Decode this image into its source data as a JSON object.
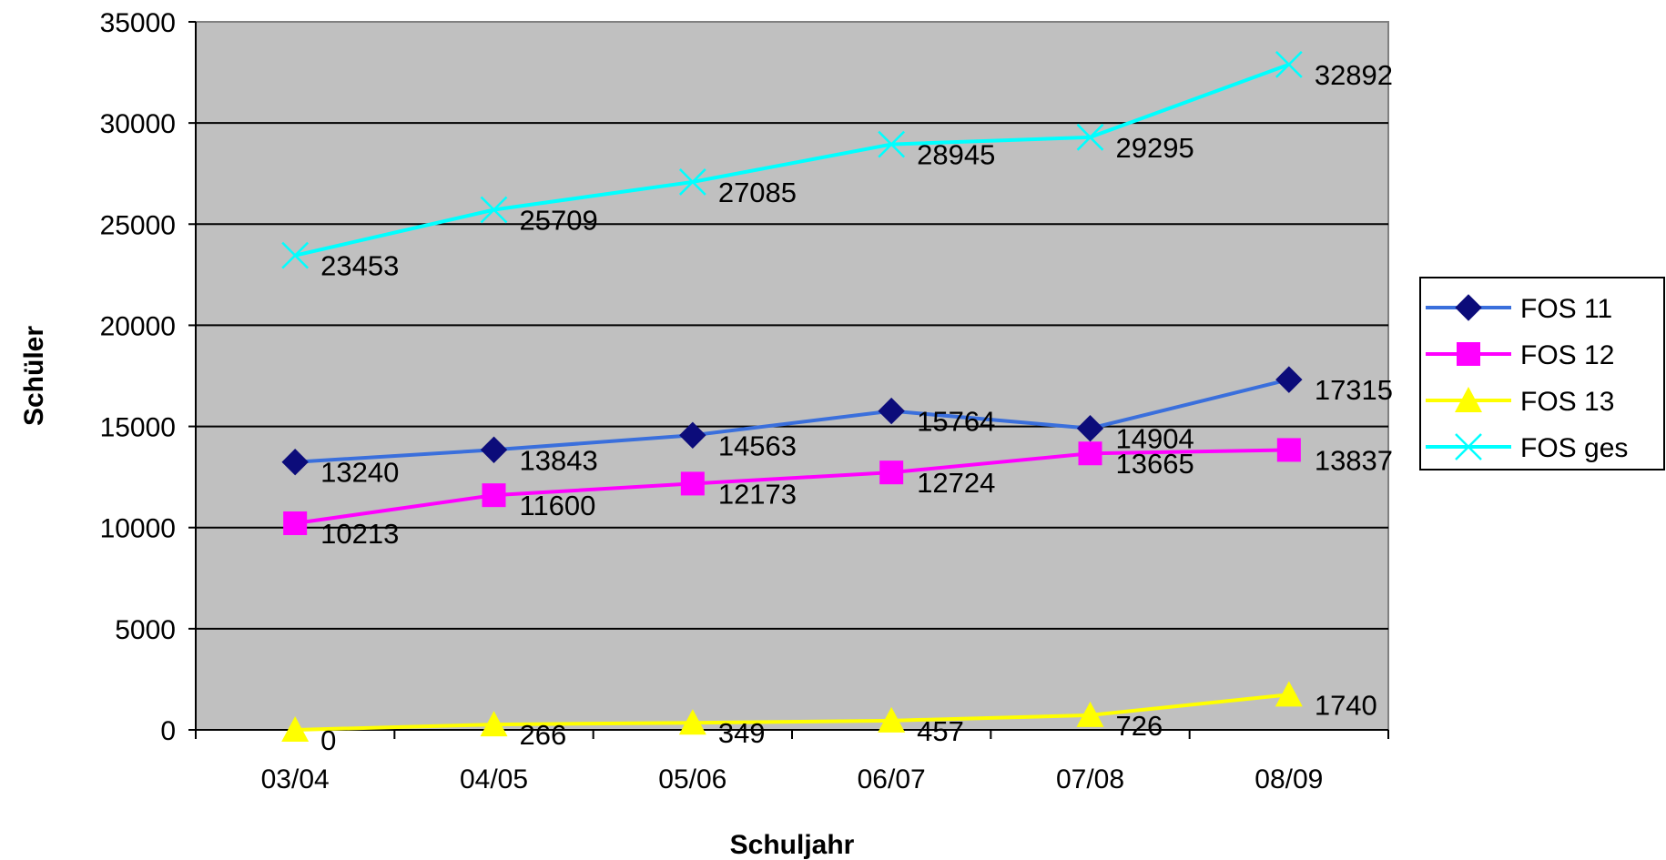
{
  "chart_data": {
    "type": "line",
    "title": "",
    "xlabel": "Schuljahr",
    "ylabel": "Schüler",
    "categories": [
      "03/04",
      "04/05",
      "05/06",
      "06/07",
      "07/08",
      "08/09"
    ],
    "ylim": [
      0,
      35000
    ],
    "yticks": [
      0,
      5000,
      10000,
      15000,
      20000,
      25000,
      30000,
      35000
    ],
    "grid": true,
    "legend_position": "right",
    "plot_background": "#c0c0c0",
    "series": [
      {
        "name": "FOS 11",
        "values": [
          13240,
          13843,
          14563,
          15764,
          14904,
          17315
        ],
        "color": "#3a6fdc",
        "marker": "diamond",
        "marker_color": "#0c0c7a"
      },
      {
        "name": "FOS 12",
        "values": [
          10213,
          11600,
          12173,
          12724,
          13665,
          13837
        ],
        "color": "#ff00ff",
        "marker": "square",
        "marker_color": "#ff00ff"
      },
      {
        "name": "FOS 13",
        "values": [
          0,
          266,
          349,
          457,
          726,
          1740
        ],
        "color": "#ffff00",
        "marker": "triangle",
        "marker_color": "#ffff00"
      },
      {
        "name": "FOS ges",
        "values": [
          23453,
          25709,
          27085,
          28945,
          29295,
          32892
        ],
        "color": "#00ffff",
        "marker": "x",
        "marker_color": "#00ffff"
      }
    ]
  }
}
